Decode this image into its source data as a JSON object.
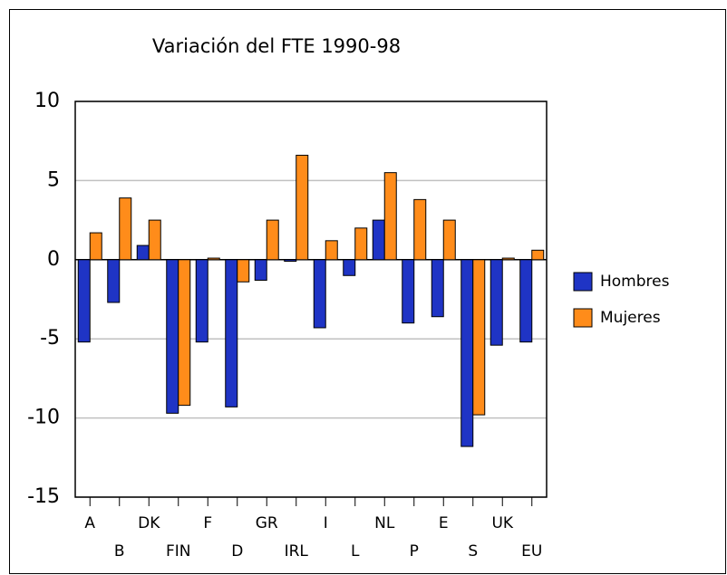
{
  "chart_data": {
    "type": "bar",
    "title": "Variación del FTE 1990-98",
    "categories": [
      "A",
      "B",
      "DK",
      "FIN",
      "F",
      "D",
      "GR",
      "IRL",
      "I",
      "L",
      "NL",
      "P",
      "E",
      "S",
      "UK",
      "EU"
    ],
    "series": [
      {
        "name": "Hombres",
        "color": "#1f34c5",
        "values": [
          -5.2,
          -2.7,
          0.9,
          -9.7,
          -5.2,
          -9.3,
          -1.3,
          -0.1,
          -4.3,
          -1.0,
          2.5,
          -4.0,
          -3.6,
          -11.8,
          -5.4,
          -5.2
        ]
      },
      {
        "name": "Mujeres",
        "color": "#ff8c1a",
        "values": [
          1.7,
          3.9,
          2.5,
          -9.2,
          0.1,
          -1.4,
          2.5,
          6.6,
          1.2,
          2.0,
          5.5,
          3.8,
          2.5,
          -9.8,
          0.1,
          0.6
        ]
      }
    ],
    "ylim": [
      -15,
      10
    ],
    "yticks": [
      -15,
      -10,
      -5,
      0,
      5,
      10
    ],
    "grid": true,
    "legend": "right"
  }
}
